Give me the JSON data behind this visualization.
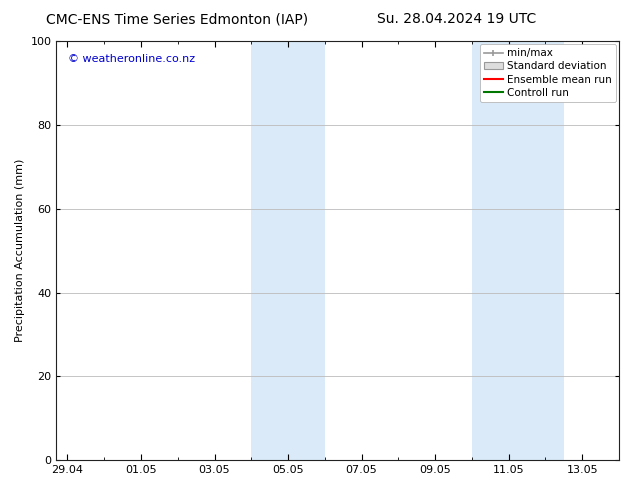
{
  "title_left": "CMC-ENS Time Series Edmonton (IAP)",
  "title_right": "Su. 28.04.2024 19 UTC",
  "ylabel": "Precipitation Accumulation (mm)",
  "watermark": "© weatheronline.co.nz",
  "watermark_color": "#0000cc",
  "ylim": [
    0,
    100
  ],
  "yticks": [
    0,
    20,
    40,
    60,
    80,
    100
  ],
  "xtick_labels": [
    "29.04",
    "01.05",
    "03.05",
    "05.05",
    "07.05",
    "09.05",
    "11.05",
    "13.05"
  ],
  "xtick_positions": [
    0,
    2,
    4,
    6,
    8,
    10,
    12,
    14
  ],
  "shaded_bands": [
    {
      "x_start": 5.0,
      "x_end": 7.0
    },
    {
      "x_start": 11.0,
      "x_end": 13.5
    }
  ],
  "shaded_color": "#daeaf8",
  "background_color": "#ffffff",
  "plot_bg_color": "#ffffff",
  "grid_color": "#bbbbbb",
  "legend_items": [
    {
      "label": "min/max",
      "color": "#aaaaaa",
      "style": "line_with_caps"
    },
    {
      "label": "Standard deviation",
      "color": "#cccccc",
      "style": "filled_box"
    },
    {
      "label": "Ensemble mean run",
      "color": "#ff0000",
      "style": "line"
    },
    {
      "label": "Controll run",
      "color": "#007700",
      "style": "line"
    }
  ],
  "xmin": -0.3,
  "xmax": 15.0,
  "font_size_title": 10,
  "font_size_axis": 8,
  "font_size_legend": 7.5,
  "font_size_watermark": 8
}
